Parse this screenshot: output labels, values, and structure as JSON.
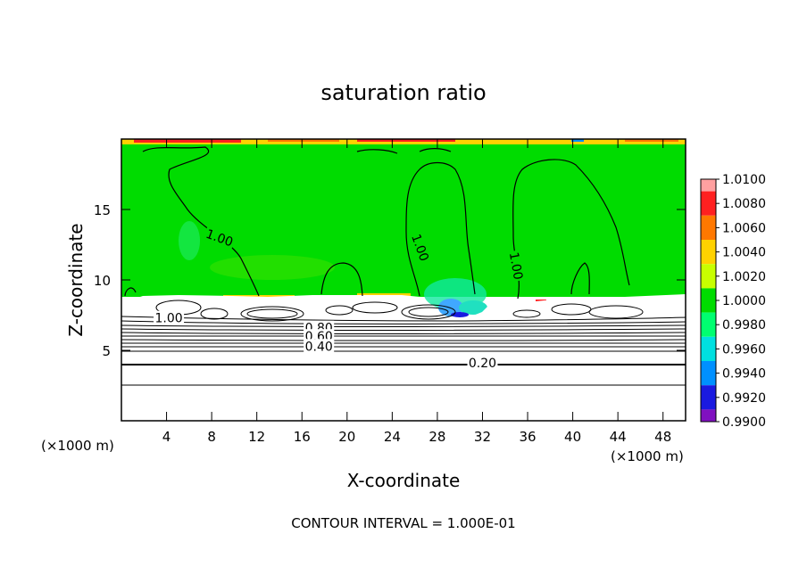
{
  "chart_data": {
    "type": "heatmap",
    "title": "saturation ratio",
    "xlabel": "X-coordinate",
    "ylabel": "Z-coordinate",
    "x_units_left": "(×1000 m)",
    "x_units_right": "(×1000 m)",
    "footer": "CONTOUR INTERVAL = 1.000E-01",
    "xlim": [
      0,
      50
    ],
    "ylim": [
      0,
      20
    ],
    "x_ticks": [
      4,
      8,
      12,
      16,
      20,
      24,
      28,
      32,
      36,
      40,
      44,
      48
    ],
    "x_tick_labels": [
      "4",
      "8",
      "12",
      "16",
      "20",
      "24",
      "28",
      "32",
      "36",
      "40",
      "44",
      "48"
    ],
    "y_ticks": [
      5,
      10,
      15
    ],
    "y_tick_labels": [
      "5",
      "10",
      "15"
    ],
    "colorbar": {
      "labels": [
        "1.0100",
        "1.0080",
        "1.0060",
        "1.0040",
        "1.0020",
        "1.0000",
        "0.9980",
        "0.9960",
        "0.9940",
        "0.9920",
        "0.9900"
      ],
      "colors": [
        "#ffa0a0",
        "#ff2020",
        "#ff7800",
        "#ffd200",
        "#c8ff00",
        "#00dc00",
        "#00ff70",
        "#00e0e0",
        "#0090ff",
        "#1a1ae0",
        "#8010c0"
      ]
    },
    "saturated_layer_top": 8.8,
    "contour_labels": [
      {
        "text": "1.00",
        "x": 8.7,
        "z": 13.0,
        "angle": 20
      },
      {
        "text": "1.00",
        "x": 26.5,
        "z": 12.3,
        "angle": 70
      },
      {
        "text": "1.00",
        "x": 35.0,
        "z": 11.0,
        "angle": 80
      },
      {
        "text": "1.00",
        "x": 4.2,
        "z": 7.3,
        "angle": 0
      },
      {
        "text": "0.80",
        "x": 17.5,
        "z": 6.6,
        "angle": 0
      },
      {
        "text": "0.60",
        "x": 17.5,
        "z": 6.0,
        "angle": 0
      },
      {
        "text": "0.40",
        "x": 17.5,
        "z": 5.3,
        "angle": 0
      },
      {
        "text": "0.20",
        "x": 32.0,
        "z": 4.1,
        "angle": 0
      }
    ]
  }
}
